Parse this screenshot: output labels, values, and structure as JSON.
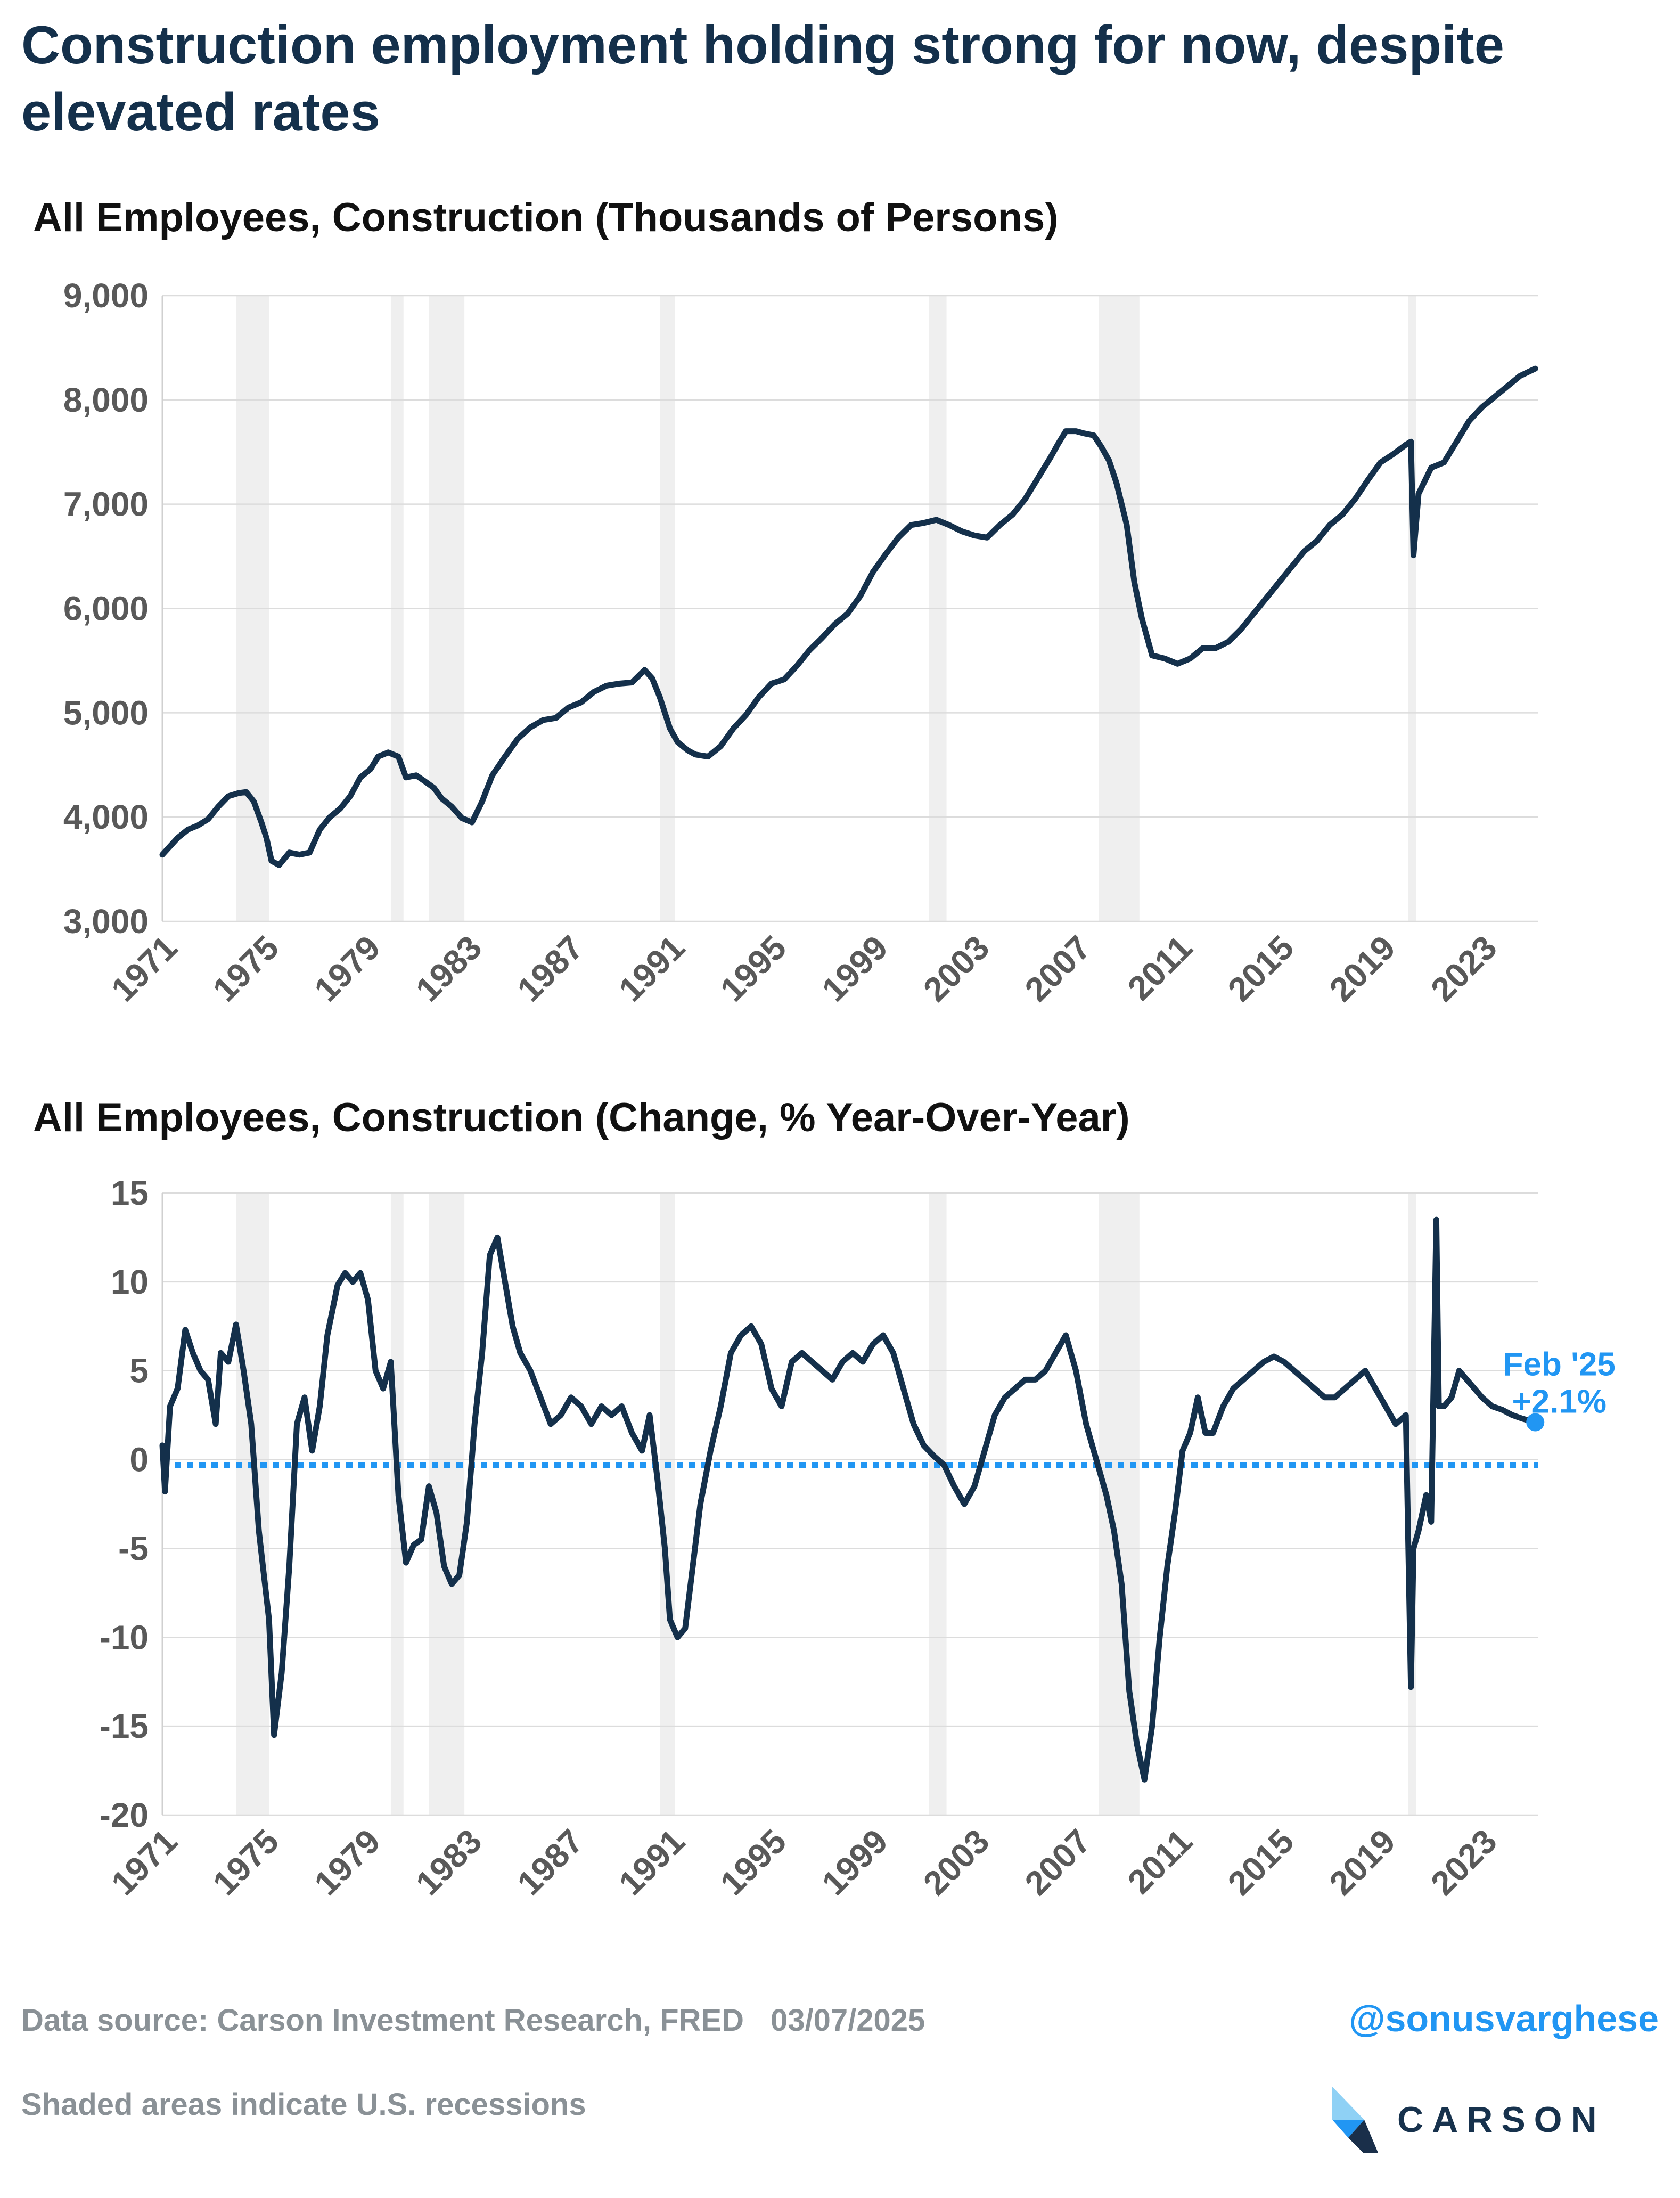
{
  "headline": "Construction employment holding strong for now, despite elevated rates",
  "footer": {
    "source": "Data source: Carson Investment Research, FRED",
    "date": "03/07/2025",
    "recession_note": "Shaded areas indicate U.S. recessions",
    "handle": "@sonusvarghese",
    "logo_text": "CARSON"
  },
  "colors": {
    "line": "#14304b",
    "recession": "#efefef",
    "grid": "#dcdcdc",
    "zero_line": "#2196f3",
    "accent": "#2196f3",
    "tick_label": "#595959"
  },
  "chart_data": [
    {
      "type": "line",
      "title": "All Employees, Construction (Thousands of Persons)",
      "x_range": [
        1971,
        2025.2
      ],
      "ylim": [
        3000,
        9000
      ],
      "y_ticks": [
        3000,
        4000,
        5000,
        6000,
        7000,
        8000,
        9000
      ],
      "y_tick_labels": [
        "3,000",
        "4,000",
        "5,000",
        "6,000",
        "7,000",
        "8,000",
        "9,000"
      ],
      "x_ticks": [
        1971,
        1975,
        1979,
        1983,
        1987,
        1991,
        1995,
        1999,
        2003,
        2007,
        2011,
        2015,
        2019,
        2023
      ],
      "x_tick_labels": [
        "1971",
        "1975",
        "1979",
        "1983",
        "1987",
        "1991",
        "1995",
        "1999",
        "2003",
        "2007",
        "2011",
        "2015",
        "2019",
        "2023"
      ],
      "grid": true,
      "recessions": [
        [
          1973.9,
          1975.2
        ],
        [
          1980.0,
          1980.5
        ],
        [
          1981.5,
          1982.9
        ],
        [
          1990.6,
          1991.2
        ],
        [
          2001.2,
          2001.9
        ],
        [
          2007.9,
          2009.5
        ],
        [
          2020.1,
          2020.4
        ]
      ],
      "series": [
        {
          "x": [
            1971.0,
            1971.3,
            1971.6,
            1972.0,
            1972.4,
            1972.8,
            1973.2,
            1973.6,
            1974.0,
            1974.3,
            1974.6,
            1974.9,
            1975.1,
            1975.3,
            1975.6,
            1976.0,
            1976.4,
            1976.8,
            1977.2,
            1977.6,
            1978.0,
            1978.4,
            1978.8,
            1979.2,
            1979.5,
            1979.9,
            1980.3,
            1980.6,
            1981.0,
            1981.3,
            1981.7,
            1982.0,
            1982.4,
            1982.8,
            1983.2,
            1983.6,
            1984.0,
            1984.5,
            1985.0,
            1985.5,
            1986.0,
            1986.5,
            1987.0,
            1987.5,
            1988.0,
            1988.5,
            1989.0,
            1989.5,
            1990.0,
            1990.3,
            1990.6,
            1991.0,
            1991.3,
            1991.7,
            1992.0,
            1992.5,
            1993.0,
            1993.5,
            1994.0,
            1994.5,
            1995.0,
            1995.5,
            1996.0,
            1996.5,
            1997.0,
            1997.5,
            1998.0,
            1998.5,
            1999.0,
            1999.5,
            2000.0,
            2000.5,
            2001.0,
            2001.5,
            2002.0,
            2002.5,
            2003.0,
            2003.5,
            2004.0,
            2004.5,
            2005.0,
            2005.5,
            2006.0,
            2006.3,
            2006.6,
            2007.0,
            2007.3,
            2007.7,
            2008.0,
            2008.3,
            2008.6,
            2009.0,
            2009.3,
            2009.6,
            2010.0,
            2010.5,
            2011.0,
            2011.5,
            2012.0,
            2012.5,
            2013.0,
            2013.5,
            2014.0,
            2014.5,
            2015.0,
            2015.5,
            2016.0,
            2016.5,
            2017.0,
            2017.5,
            2018.0,
            2018.5,
            2019.0,
            2019.5,
            2020.0,
            2020.2,
            2020.3,
            2020.5,
            2020.8,
            2021.0,
            2021.5,
            2022.0,
            2022.5,
            2023.0,
            2023.5,
            2024.0,
            2024.5,
            2025.1
          ],
          "y": [
            3640,
            3720,
            3800,
            3880,
            3920,
            3980,
            4100,
            4200,
            4230,
            4240,
            4150,
            3950,
            3800,
            3580,
            3540,
            3660,
            3640,
            3660,
            3880,
            4000,
            4080,
            4200,
            4380,
            4460,
            4580,
            4620,
            4580,
            4380,
            4400,
            4350,
            4280,
            4180,
            4100,
            3990,
            3950,
            4150,
            4400,
            4580,
            4750,
            4860,
            4930,
            4950,
            5050,
            5100,
            5200,
            5260,
            5280,
            5290,
            5410,
            5330,
            5150,
            4850,
            4720,
            4640,
            4600,
            4580,
            4680,
            4850,
            4980,
            5150,
            5280,
            5320,
            5450,
            5600,
            5720,
            5850,
            5950,
            6120,
            6350,
            6520,
            6680,
            6800,
            6820,
            6850,
            6800,
            6740,
            6700,
            6680,
            6800,
            6900,
            7050,
            7250,
            7450,
            7580,
            7700,
            7700,
            7680,
            7660,
            7550,
            7420,
            7200,
            6800,
            6250,
            5900,
            5550,
            5520,
            5470,
            5520,
            5620,
            5620,
            5680,
            5800,
            5950,
            6100,
            6250,
            6400,
            6550,
            6650,
            6800,
            6900,
            7050,
            7230,
            7400,
            7480,
            7570,
            7600,
            6510,
            7100,
            7250,
            7350,
            7400,
            7600,
            7800,
            7930,
            8030,
            8130,
            8230,
            8300
          ]
        }
      ]
    },
    {
      "type": "line",
      "title": "All Employees, Construction (Change, % Year-Over-Year)",
      "x_range": [
        1971,
        2025.2
      ],
      "ylim": [
        -20,
        15
      ],
      "y_ticks": [
        -20,
        -15,
        -10,
        -5,
        0,
        5,
        10,
        15
      ],
      "y_tick_labels": [
        "-20",
        "-15",
        "-10",
        "-5",
        "0",
        "5",
        "10",
        "15"
      ],
      "x_ticks": [
        1971,
        1975,
        1979,
        1983,
        1987,
        1991,
        1995,
        1999,
        2003,
        2007,
        2011,
        2015,
        2019,
        2023
      ],
      "x_tick_labels": [
        "1971",
        "1975",
        "1979",
        "1983",
        "1987",
        "1991",
        "1995",
        "1999",
        "2003",
        "2007",
        "2011",
        "2015",
        "2019",
        "2023"
      ],
      "grid": true,
      "recessions": [
        [
          1973.9,
          1975.2
        ],
        [
          1980.0,
          1980.5
        ],
        [
          1981.5,
          1982.9
        ],
        [
          1990.6,
          1991.2
        ],
        [
          2001.2,
          2001.9
        ],
        [
          2007.9,
          2009.5
        ],
        [
          2020.1,
          2020.4
        ]
      ],
      "reference_line": {
        "y": -0.3,
        "style": "dotted"
      },
      "annotation": {
        "label": "Feb '25",
        "value_label": "+2.1%",
        "x": 2025.1,
        "y": 2.1
      },
      "series": [
        {
          "x": [
            1971.0,
            1971.1,
            1971.3,
            1971.6,
            1971.9,
            1972.2,
            1972.5,
            1972.8,
            1973.1,
            1973.3,
            1973.6,
            1973.9,
            1974.2,
            1974.5,
            1974.8,
            1975.0,
            1975.2,
            1975.4,
            1975.7,
            1976.0,
            1976.3,
            1976.6,
            1976.9,
            1977.2,
            1977.5,
            1977.9,
            1978.2,
            1978.5,
            1978.8,
            1979.1,
            1979.4,
            1979.7,
            1980.0,
            1980.3,
            1980.6,
            1980.9,
            1981.2,
            1981.5,
            1981.8,
            1982.1,
            1982.4,
            1982.7,
            1983.0,
            1983.3,
            1983.6,
            1983.9,
            1984.2,
            1984.5,
            1984.8,
            1985.1,
            1985.5,
            1985.9,
            1986.3,
            1986.7,
            1987.1,
            1987.5,
            1987.9,
            1988.3,
            1988.7,
            1989.1,
            1989.5,
            1989.9,
            1990.2,
            1990.5,
            1990.8,
            1991.0,
            1991.3,
            1991.6,
            1991.9,
            1992.2,
            1992.6,
            1993.0,
            1993.4,
            1993.8,
            1994.2,
            1994.6,
            1995.0,
            1995.4,
            1995.8,
            1996.2,
            1996.6,
            1997.0,
            1997.4,
            1997.8,
            1998.2,
            1998.6,
            1999.0,
            1999.4,
            1999.8,
            2000.2,
            2000.6,
            2001.0,
            2001.4,
            2001.8,
            2002.2,
            2002.6,
            2003.0,
            2003.4,
            2003.8,
            2004.2,
            2004.6,
            2005.0,
            2005.4,
            2005.8,
            2006.2,
            2006.6,
            2007.0,
            2007.4,
            2007.8,
            2008.2,
            2008.5,
            2008.8,
            2009.1,
            2009.4,
            2009.7,
            2010.0,
            2010.3,
            2010.6,
            2010.9,
            2011.2,
            2011.5,
            2011.8,
            2012.1,
            2012.4,
            2012.8,
            2013.2,
            2013.6,
            2014.0,
            2014.4,
            2014.8,
            2015.2,
            2015.6,
            2016.0,
            2016.4,
            2016.8,
            2017.2,
            2017.6,
            2018.0,
            2018.4,
            2018.8,
            2019.2,
            2019.6,
            2020.0,
            2020.2,
            2020.3,
            2020.5,
            2020.8,
            2021.0,
            2021.2,
            2021.3,
            2021.5,
            2021.8,
            2022.1,
            2022.4,
            2022.7,
            2023.0,
            2023.4,
            2023.8,
            2024.2,
            2024.6,
            2025.1
          ],
          "y": [
            0.8,
            -1.8,
            3.0,
            4.0,
            7.3,
            6.0,
            5.0,
            4.5,
            2.0,
            6.0,
            5.5,
            7.6,
            5.0,
            2.0,
            -4.0,
            -6.5,
            -9.0,
            -15.5,
            -12.0,
            -6.0,
            2.0,
            3.5,
            0.5,
            3.0,
            7.0,
            9.8,
            10.5,
            10.0,
            10.5,
            9.0,
            5.0,
            4.0,
            5.5,
            -2.0,
            -5.8,
            -4.8,
            -4.5,
            -1.5,
            -3.0,
            -6.0,
            -7.0,
            -6.5,
            -3.5,
            2.0,
            6.0,
            11.5,
            12.5,
            10.0,
            7.5,
            6.0,
            5.0,
            3.5,
            2.0,
            2.5,
            3.5,
            3.0,
            2.0,
            3.0,
            2.5,
            3.0,
            1.5,
            0.5,
            2.5,
            -1.0,
            -5.0,
            -9.0,
            -10.0,
            -9.5,
            -6.0,
            -2.5,
            0.5,
            3.0,
            6.0,
            7.0,
            7.5,
            6.5,
            4.0,
            3.0,
            5.5,
            6.0,
            5.5,
            5.0,
            4.5,
            5.5,
            6.0,
            5.5,
            6.5,
            7.0,
            6.0,
            4.0,
            2.0,
            0.8,
            0.2,
            -0.3,
            -1.5,
            -2.5,
            -1.5,
            0.5,
            2.5,
            3.5,
            4.0,
            4.5,
            4.5,
            5.0,
            6.0,
            7.0,
            5.0,
            2.0,
            0.0,
            -2.0,
            -4.0,
            -7.0,
            -13.0,
            -16.0,
            -18.0,
            -15.0,
            -10.0,
            -6.0,
            -3.0,
            0.5,
            1.5,
            3.5,
            1.5,
            1.5,
            3.0,
            4.0,
            4.5,
            5.0,
            5.5,
            5.8,
            5.5,
            5.0,
            4.5,
            4.0,
            3.5,
            3.5,
            4.0,
            4.5,
            5.0,
            4.0,
            3.0,
            2.0,
            2.5,
            -12.8,
            -5.0,
            -4.0,
            -2.0,
            -3.5,
            13.5,
            3.0,
            3.0,
            3.5,
            5.0,
            4.5,
            4.0,
            3.5,
            3.0,
            2.8,
            2.5,
            2.3,
            2.1
          ]
        }
      ]
    }
  ]
}
